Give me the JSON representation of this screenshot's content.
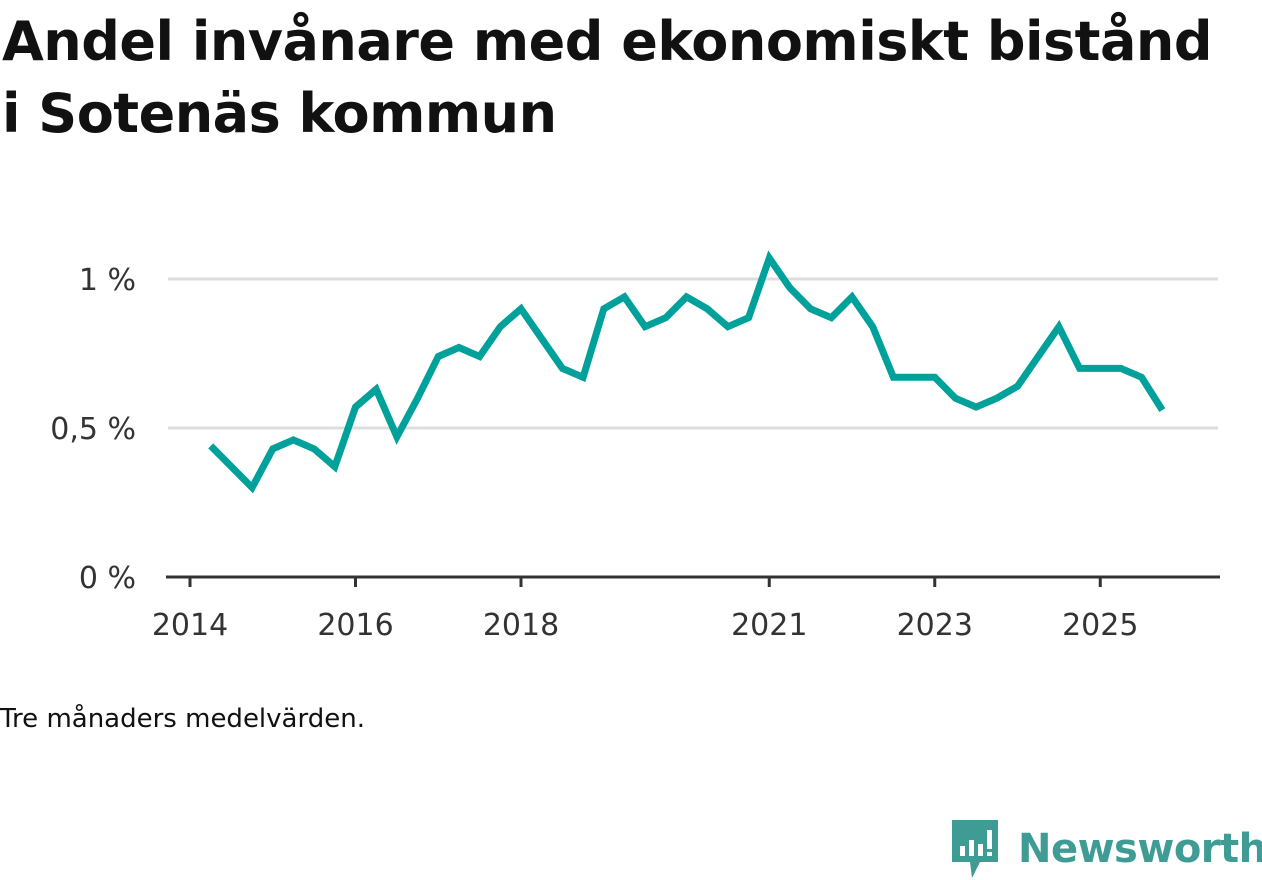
{
  "title": "Andel invånare med ekonomiskt bistånd i Sotenäs kommun",
  "footnote": "Tre månaders medelvärden.",
  "brand": {
    "name": "Newsworthy",
    "icon": "newsworthy-logo-icon",
    "color": "#3f9c94"
  },
  "colors": {
    "line": "#00a19a",
    "grid": "#dddddd",
    "axis": "#333333"
  },
  "chart_data": {
    "type": "line",
    "title": "Andel invånare med ekonomiskt bistånd i Sotenäs kommun",
    "xlabel": "",
    "ylabel": "",
    "ylim": [
      0,
      1
    ],
    "xlim": [
      2014,
      2026
    ],
    "grid": true,
    "y_ticks": [
      {
        "value": 0,
        "label": "0 %"
      },
      {
        "value": 0.5,
        "label": "0,5 %"
      },
      {
        "value": 1,
        "label": "1 %"
      }
    ],
    "x_ticks": [
      {
        "value": 2014,
        "label": "2014"
      },
      {
        "value": 2016,
        "label": "2016"
      },
      {
        "value": 2018,
        "label": "2018"
      },
      {
        "value": 2021,
        "label": "2021"
      },
      {
        "value": 2023,
        "label": "2023"
      },
      {
        "value": 2025,
        "label": "2025"
      }
    ],
    "series": [
      {
        "name": "Andel invånare med ekonomiskt bistånd",
        "x": [
          2014.25,
          2014.5,
          2014.75,
          2015.0,
          2015.25,
          2015.5,
          2015.75,
          2016.0,
          2016.25,
          2016.5,
          2016.75,
          2017.0,
          2017.25,
          2017.5,
          2017.75,
          2018.0,
          2018.25,
          2018.5,
          2018.75,
          2019.0,
          2019.25,
          2019.5,
          2019.75,
          2020.0,
          2020.25,
          2020.5,
          2020.75,
          2021.0,
          2021.25,
          2021.5,
          2021.75,
          2022.0,
          2022.25,
          2022.5,
          2022.75,
          2023.0,
          2023.25,
          2023.5,
          2023.75,
          2024.0,
          2024.25,
          2024.5,
          2024.75,
          2025.0,
          2025.25,
          2025.5,
          2025.75
        ],
        "values": [
          0.44,
          0.37,
          0.3,
          0.43,
          0.46,
          0.43,
          0.37,
          0.57,
          0.63,
          0.47,
          0.6,
          0.74,
          0.77,
          0.74,
          0.84,
          0.9,
          0.8,
          0.7,
          0.67,
          0.9,
          0.94,
          0.84,
          0.87,
          0.94,
          0.9,
          0.84,
          0.87,
          1.07,
          0.97,
          0.9,
          0.87,
          0.94,
          0.84,
          0.67,
          0.67,
          0.67,
          0.6,
          0.57,
          0.6,
          0.64,
          0.74,
          0.84,
          0.7,
          0.7,
          0.7,
          0.67,
          0.56
        ]
      }
    ]
  }
}
